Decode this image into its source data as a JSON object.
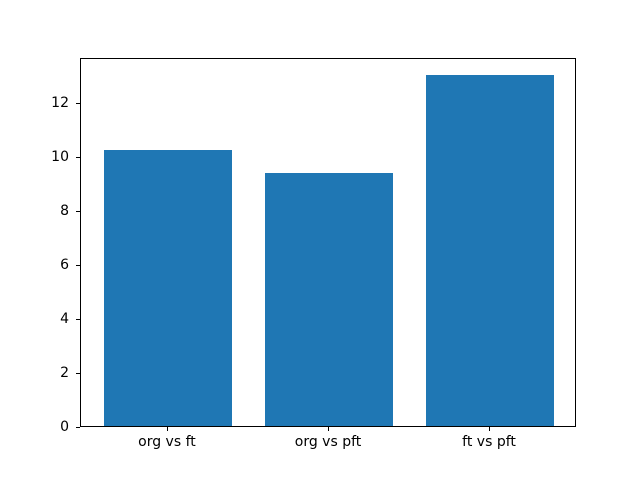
{
  "chart_data": {
    "type": "bar",
    "categories": [
      "org vs ft",
      "org vs pft",
      "ft vs pft"
    ],
    "values": [
      10.2,
      9.35,
      13.0
    ],
    "yticks": [
      0,
      2,
      4,
      6,
      8,
      10,
      12
    ],
    "ylim": [
      0,
      13.65
    ],
    "xlim": [
      -0.54,
      2.54
    ],
    "bar_width": 0.8,
    "bar_color": "#1f77b4",
    "frame_color": "#000000",
    "background_color": "#ffffff",
    "grid": false,
    "legend": "none",
    "title": "",
    "xlabel": "",
    "ylabel": ""
  }
}
